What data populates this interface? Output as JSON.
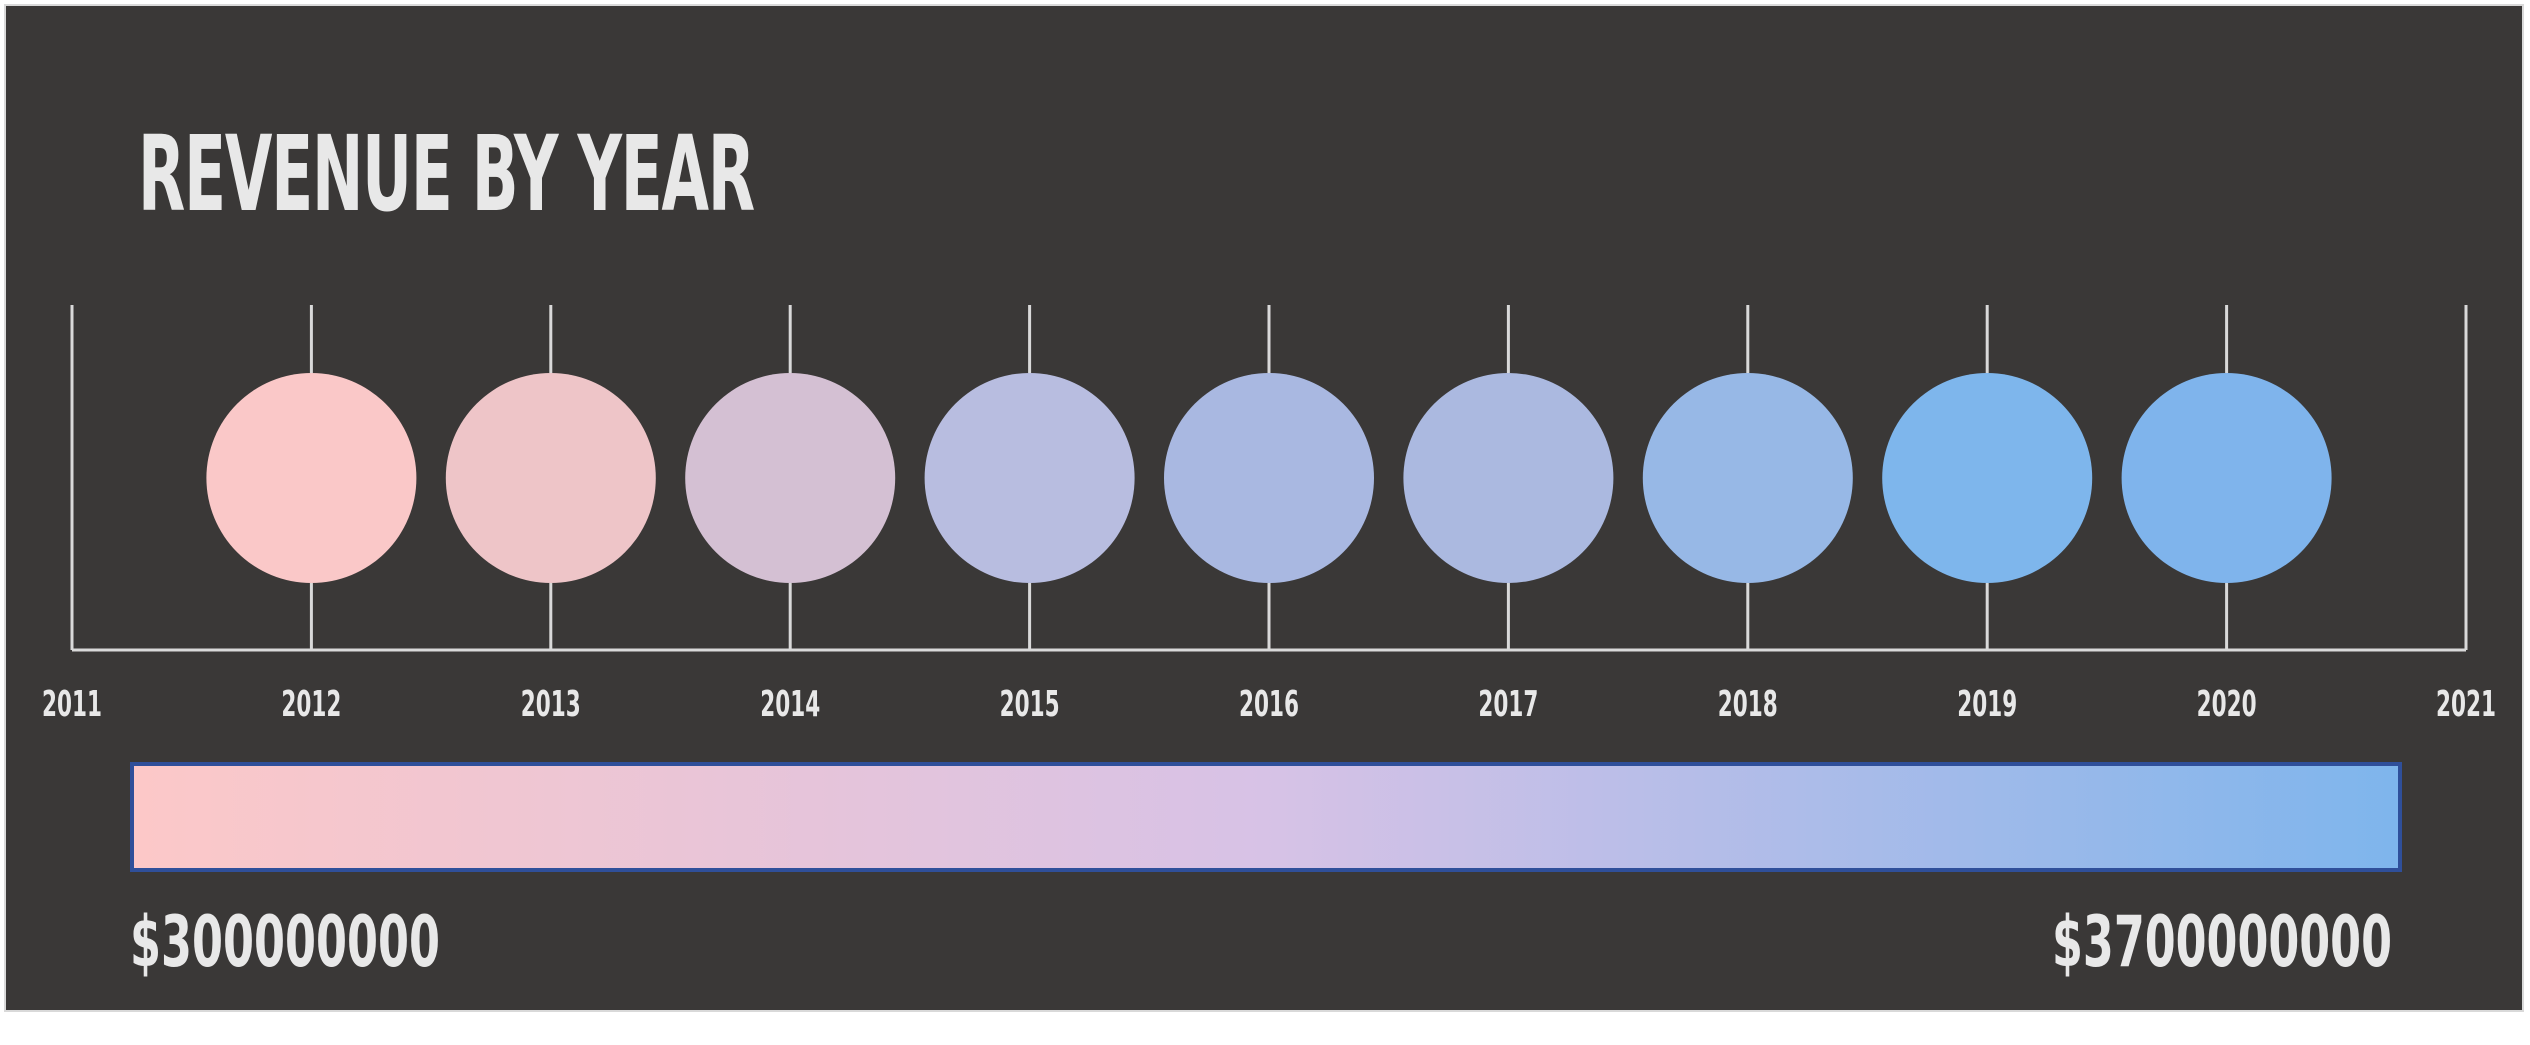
{
  "chart_data": {
    "type": "bubble-timeline",
    "title": "REVENUE BY YEAR",
    "x_ticks": [
      "2011",
      "2012",
      "2013",
      "2014",
      "2015",
      "2016",
      "2017",
      "2018",
      "2019",
      "2020",
      "2021"
    ],
    "xlim": [
      2011,
      2021
    ],
    "points": [
      {
        "year": 2012,
        "color": "#fac8c8"
      },
      {
        "year": 2013,
        "color": "#eec5c8"
      },
      {
        "year": 2014,
        "color": "#d4c0d3"
      },
      {
        "year": 2015,
        "color": "#b8bde0"
      },
      {
        "year": 2016,
        "color": "#a9b8e1"
      },
      {
        "year": 2017,
        "color": "#abb9e0"
      },
      {
        "year": 2018,
        "color": "#97b8e6"
      },
      {
        "year": 2019,
        "color": "#7eb6ec"
      },
      {
        "year": 2020,
        "color": "#7fb4ec"
      }
    ],
    "color_scale": {
      "min_label": "$300000000",
      "max_label": "$3700000000",
      "min_color": "#fcc8c8",
      "mid_color": "#d7c2e6",
      "max_color": "#7eb5ec",
      "border_color": "#2f4f9a"
    },
    "grid": false
  },
  "colors": {
    "background": "#3a3837",
    "axis": "#d9d9d9",
    "text": "#e8e8e8"
  }
}
